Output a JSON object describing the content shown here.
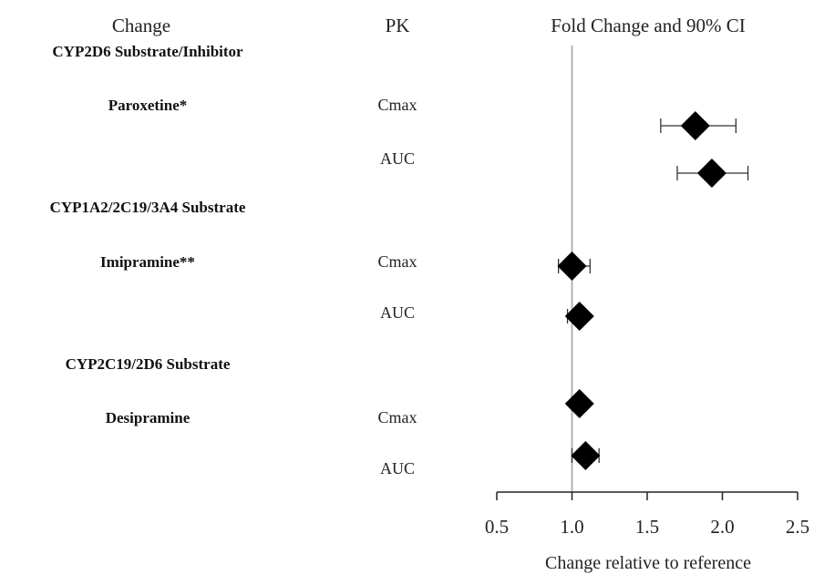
{
  "headers": {
    "change": "Change",
    "pk": "PK",
    "ci": "Fold Change and 90% CI"
  },
  "chart_data": {
    "type": "forest",
    "xlabel": "Change relative to reference",
    "xlim": [
      0.5,
      2.5
    ],
    "ticks": [
      "0.5",
      "1.0",
      "1.5",
      "2.0",
      "2.5"
    ],
    "tick_values": [
      0.5,
      1.0,
      1.5,
      2.0,
      2.5
    ],
    "reference_line": 1.0,
    "groups": [
      {
        "name": "CYP2D6 Substrate/Inhibitor",
        "drug": "Paroxetine*",
        "rows": [
          {
            "pk": "Cmax",
            "estimate": 1.82,
            "lower": 1.59,
            "upper": 2.09
          },
          {
            "pk": "AUC",
            "estimate": 1.93,
            "lower": 1.7,
            "upper": 2.17
          }
        ]
      },
      {
        "name": "CYP1A2/2C19/3A4 Substrate",
        "drug": "Imipramine**",
        "rows": [
          {
            "pk": "Cmax",
            "estimate": 1.0,
            "lower": 0.91,
            "upper": 1.12
          },
          {
            "pk": "AUC",
            "estimate": 1.05,
            "lower": 0.97,
            "upper": 1.08
          }
        ]
      },
      {
        "name": "CYP2C19/2D6 Substrate",
        "drug": "Desipramine",
        "rows": [
          {
            "pk": "Cmax",
            "estimate": 1.05,
            "lower": 1.0,
            "upper": 1.09
          },
          {
            "pk": "AUC",
            "estimate": 1.09,
            "lower": 1.0,
            "upper": 1.18
          }
        ]
      }
    ]
  }
}
